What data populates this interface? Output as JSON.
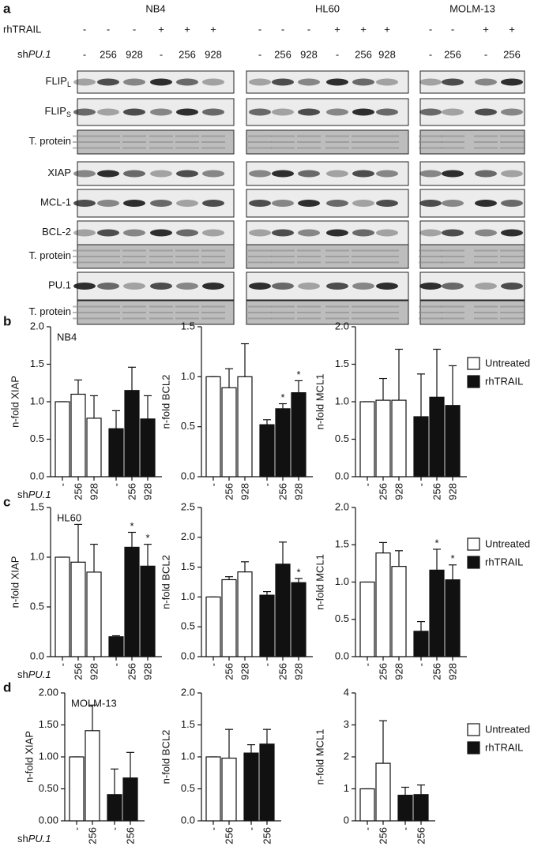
{
  "figure": {
    "panel_a": {
      "letter": "a",
      "treatment_label": "rhTRAIL",
      "sh_label": {
        "prefix": "sh",
        "gene": "PU.1"
      },
      "cell_lines": [
        {
          "name": "NB4",
          "rhTRAIL": [
            "-",
            "-",
            "-",
            "+",
            "+",
            "+"
          ],
          "shPU1": [
            "-",
            "256",
            "928",
            "-",
            "256",
            "928"
          ]
        },
        {
          "name": "HL60",
          "rhTRAIL": [
            "-",
            "-",
            "-",
            "+",
            "+",
            "+"
          ],
          "shPU1": [
            "-",
            "256",
            "928",
            "-",
            "256",
            "928"
          ]
        },
        {
          "name": "MOLM-13",
          "rhTRAIL": [
            "-",
            "-",
            "+",
            "+"
          ],
          "shPU1": [
            "-",
            "256",
            "-",
            "256"
          ]
        }
      ],
      "blots": [
        {
          "label": "FLIP",
          "subscript": "L"
        },
        {
          "label": "FLIP",
          "subscript": "S"
        },
        {
          "label": "T. protein"
        },
        {
          "label": "XIAP"
        },
        {
          "label": "MCL-1"
        },
        {
          "label": "BCL-2"
        },
        {
          "label": "T. protein"
        },
        {
          "label": "PU.1"
        },
        {
          "label": "T. protein"
        }
      ]
    },
    "rows": [
      {
        "letter": "b",
        "sh_label": {
          "prefix": "sh",
          "gene": "PU.1"
        }
      },
      {
        "letter": "c",
        "sh_label": {
          "prefix": "sh",
          "gene": "PU.1"
        }
      },
      {
        "letter": "d",
        "sh_label": {
          "prefix": "sh",
          "gene": "PU.1"
        }
      }
    ]
  },
  "chart_data": [
    {
      "type": "bar",
      "title": "NB4",
      "ylabel": "n-fold XIAP",
      "categories": [
        "-",
        "256",
        "928"
      ],
      "ylim": [
        0,
        2
      ],
      "yticks": [
        {
          "value": 0,
          "label": "0.0"
        },
        0.5,
        {
          "value": 1,
          "label": "1.0"
        },
        1.5,
        {
          "value": 2,
          "label": "2.0"
        }
      ],
      "series": [
        {
          "color": "#ffffff",
          "values": [
            1.0,
            1.1,
            0.78
          ],
          "errors": [
            0,
            0.19,
            0.3
          ]
        },
        {
          "color": "#111111",
          "values": [
            0.64,
            1.15,
            0.77
          ],
          "errors": [
            0.24,
            0.31,
            0.31
          ]
        }
      ]
    },
    {
      "type": "bar",
      "ylabel": "n-fold BCL2",
      "categories": [
        "-",
        "256",
        "928"
      ],
      "ylim": [
        0,
        1.5
      ],
      "yticks": [
        {
          "value": 0,
          "label": "0.0"
        },
        0.5,
        {
          "value": 1,
          "label": "1.0"
        },
        1.5
      ],
      "series": [
        {
          "color": "#ffffff",
          "values": [
            1.0,
            0.89,
            1.0
          ],
          "errors": [
            0,
            0.19,
            0.33
          ]
        },
        {
          "color": "#111111",
          "values": [
            0.52,
            0.68,
            0.84
          ],
          "errors": [
            0.05,
            0.05,
            0.12
          ],
          "significance": [
            null,
            "*",
            "*"
          ]
        }
      ]
    },
    {
      "type": "bar",
      "ylabel": "n-fold  MCL1",
      "categories": [
        "-",
        "256",
        "928"
      ],
      "ylim": [
        0,
        2
      ],
      "yticks": [
        {
          "value": 0,
          "label": "0.0"
        },
        0.5,
        {
          "value": 1,
          "label": "1.0"
        },
        1.5,
        {
          "value": 2,
          "label": "2.0"
        }
      ],
      "series": [
        {
          "name": "Untreated",
          "color": "#ffffff",
          "values": [
            1.0,
            1.02,
            1.02
          ],
          "errors": [
            0,
            0.29,
            0.68
          ]
        },
        {
          "name": "rhTRAIL",
          "color": "#111111",
          "values": [
            0.8,
            1.06,
            0.95
          ],
          "errors": [
            0.57,
            0.64,
            0.53
          ]
        }
      ]
    },
    {
      "type": "bar",
      "title": "HL60",
      "ylabel": "n-fold XIAP",
      "categories": [
        "-",
        "256",
        "928"
      ],
      "ylim": [
        0,
        1.5
      ],
      "yticks": [
        {
          "value": 0,
          "label": "0.0"
        },
        0.5,
        {
          "value": 1,
          "label": "1.0"
        },
        1.5
      ],
      "series": [
        {
          "color": "#ffffff",
          "values": [
            1.0,
            0.95,
            0.85
          ],
          "errors": [
            0,
            0.38,
            0.28
          ]
        },
        {
          "color": "#111111",
          "values": [
            0.2,
            1.1,
            0.91
          ],
          "errors": [
            0.01,
            0.15,
            0.22
          ],
          "significance": [
            null,
            "*",
            "*"
          ]
        }
      ]
    },
    {
      "type": "bar",
      "ylabel": "n-fold BCL2",
      "categories": [
        "-",
        "256",
        "928"
      ],
      "ylim": [
        0,
        2.5
      ],
      "yticks": [
        {
          "value": 0,
          "label": "0.0"
        },
        0.5,
        {
          "value": 1,
          "label": "1.0"
        },
        1.5,
        {
          "value": 2,
          "label": "2.0"
        },
        2.5
      ],
      "series": [
        {
          "color": "#ffffff",
          "values": [
            1.0,
            1.29,
            1.42
          ],
          "errors": [
            0,
            0.05,
            0.17
          ]
        },
        {
          "color": "#111111",
          "values": [
            1.03,
            1.55,
            1.24
          ],
          "errors": [
            0.06,
            0.37,
            0.07
          ],
          "significance": [
            null,
            null,
            "*"
          ]
        }
      ]
    },
    {
      "type": "bar",
      "ylabel": "n-fold  MCL1",
      "categories": [
        "-",
        "256",
        "928"
      ],
      "ylim": [
        0,
        2
      ],
      "yticks": [
        {
          "value": 0,
          "label": "0.0"
        },
        0.5,
        {
          "value": 1,
          "label": "1.0"
        },
        1.5,
        {
          "value": 2,
          "label": "2.0"
        }
      ],
      "series": [
        {
          "name": "Untreated",
          "color": "#ffffff",
          "values": [
            1.0,
            1.39,
            1.21
          ],
          "errors": [
            0,
            0.14,
            0.21
          ]
        },
        {
          "name": "rhTRAIL",
          "color": "#111111",
          "values": [
            0.34,
            1.16,
            1.03
          ],
          "errors": [
            0.13,
            0.28,
            0.2
          ],
          "significance": [
            null,
            "*",
            "*"
          ]
        }
      ]
    },
    {
      "type": "bar",
      "title": "MOLM-13",
      "ylabel": "n-fold XIAP",
      "categories": [
        "-",
        "256"
      ],
      "ylim": [
        0,
        2
      ],
      "yticks": [
        {
          "value": 0,
          "label": "0.00"
        },
        {
          "value": 0.5,
          "label": "0.50"
        },
        {
          "value": 1,
          "label": "1.00"
        },
        {
          "value": 1.5,
          "label": "1.50"
        },
        {
          "value": 2,
          "label": "2.00"
        }
      ],
      "series": [
        {
          "color": "#ffffff",
          "values": [
            1.0,
            1.41
          ],
          "errors": [
            0,
            0.4
          ]
        },
        {
          "color": "#111111",
          "values": [
            0.41,
            0.67
          ],
          "errors": [
            0.4,
            0.4
          ]
        }
      ]
    },
    {
      "type": "bar",
      "ylabel": "n-fold BCL2",
      "categories": [
        "-",
        "256"
      ],
      "ylim": [
        0,
        2
      ],
      "yticks": [
        {
          "value": 0,
          "label": "0.0"
        },
        0.5,
        {
          "value": 1,
          "label": "1.0"
        },
        1.5,
        {
          "value": 2,
          "label": "2.0"
        }
      ],
      "series": [
        {
          "color": "#ffffff",
          "values": [
            1.0,
            0.98
          ],
          "errors": [
            0,
            0.45
          ]
        },
        {
          "color": "#111111",
          "values": [
            1.06,
            1.2
          ],
          "errors": [
            0.13,
            0.23
          ]
        }
      ]
    },
    {
      "type": "bar",
      "ylabel": "n-fold  MCL1",
      "categories": [
        "-",
        "256"
      ],
      "ylim": [
        0,
        4
      ],
      "yticks": [
        0,
        1,
        2,
        3,
        4
      ],
      "series": [
        {
          "name": "Untreated",
          "color": "#ffffff",
          "values": [
            1.0,
            1.8
          ],
          "errors": [
            0,
            1.33
          ]
        },
        {
          "name": "rhTRAIL",
          "color": "#111111",
          "values": [
            0.8,
            0.82
          ],
          "errors": [
            0.25,
            0.3
          ]
        }
      ]
    }
  ]
}
